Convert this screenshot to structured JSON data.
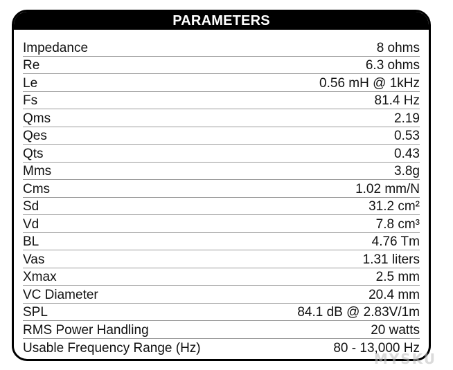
{
  "header": {
    "title": "PARAMETERS"
  },
  "rows": [
    {
      "label": "Impedance",
      "value": "8 ohms"
    },
    {
      "label": "Re",
      "value": "6.3 ohms"
    },
    {
      "label": "Le",
      "value": "0.56 mH @ 1kHz"
    },
    {
      "label": "Fs",
      "value": "81.4 Hz"
    },
    {
      "label": "Qms",
      "value": "2.19"
    },
    {
      "label": "Qes",
      "value": "0.53"
    },
    {
      "label": "Qts",
      "value": "0.43"
    },
    {
      "label": "Mms",
      "value": "3.8g"
    },
    {
      "label": "Cms",
      "value": "1.02 mm/N"
    },
    {
      "label": "Sd",
      "value": "31.2 cm²"
    },
    {
      "label": "Vd",
      "value": "7.8 cm³"
    },
    {
      "label": "BL",
      "value": "4.76 Tm"
    },
    {
      "label": "Vas",
      "value": "1.31 liters"
    },
    {
      "label": "Xmax",
      "value": "2.5 mm"
    },
    {
      "label": "VC Diameter",
      "value": "20.4 mm"
    },
    {
      "label": "SPL",
      "value": "84.1 dB @ 2.83V/1m"
    },
    {
      "label": "RMS Power Handling",
      "value": "20 watts"
    },
    {
      "label": "Usable Frequency Range (Hz)",
      "value": "80 - 13,000 Hz"
    }
  ],
  "watermark": "MYSKU"
}
